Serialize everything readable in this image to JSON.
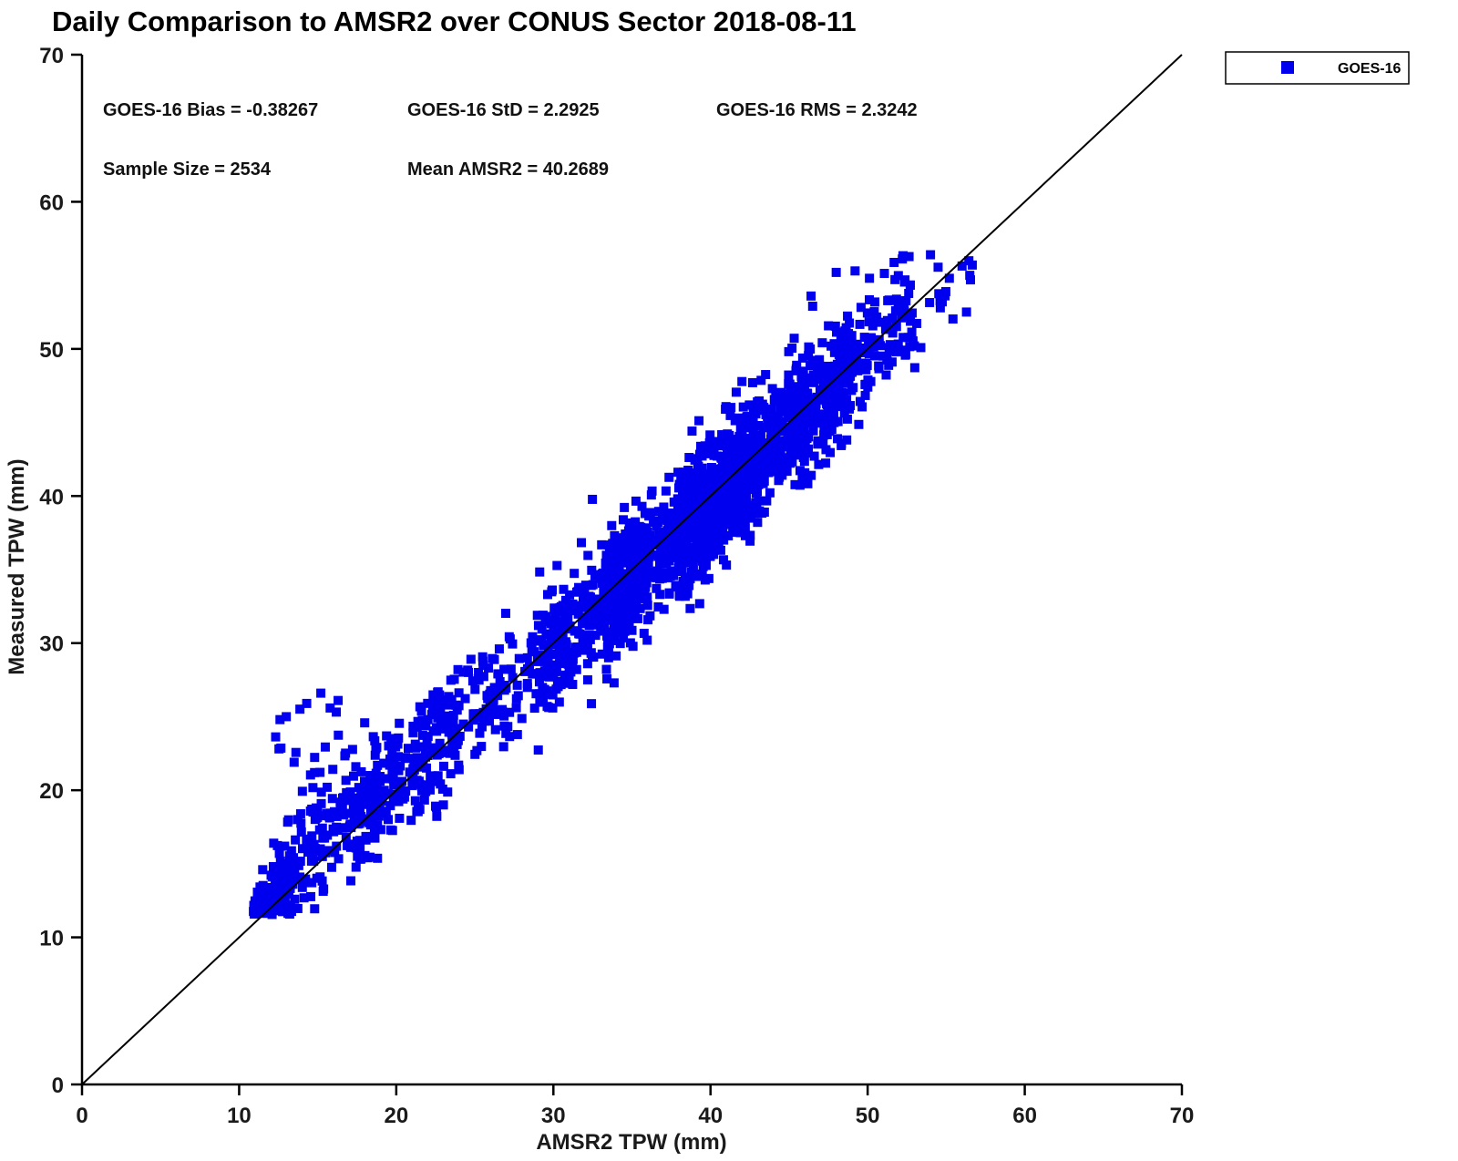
{
  "chart_data": {
    "type": "scatter",
    "title": "Daily Comparison to AMSR2 over CONUS Sector 2018-08-11",
    "xlabel": "AMSR2 TPW (mm)",
    "ylabel": "Measured TPW (mm)",
    "xlim": [
      0,
      70
    ],
    "ylim": [
      0,
      70
    ],
    "xticks": [
      0,
      10,
      20,
      30,
      40,
      50,
      60,
      70
    ],
    "yticks": [
      0,
      10,
      20,
      30,
      40,
      50,
      60,
      70
    ],
    "grid": false,
    "reference_line": {
      "type": "identity",
      "from": [
        0,
        0
      ],
      "to": [
        70,
        70
      ],
      "color": "#000000"
    },
    "legend": {
      "position": "top-right-outside",
      "entries": [
        {
          "label": "GOES-16",
          "marker": "square",
          "color": "#0000ee"
        }
      ]
    },
    "annotations": [
      {
        "text": "GOES-16 Bias = -0.38267"
      },
      {
        "text": "GOES-16 StD = 2.2925"
      },
      {
        "text": "GOES-16 RMS = 2.3242"
      },
      {
        "text": "Sample Size = 2534"
      },
      {
        "text": "Mean AMSR2 = 40.2689"
      }
    ],
    "stats": {
      "bias": -0.38267,
      "std": 2.2925,
      "rms": 2.3242,
      "sample_size": 2534,
      "mean_amsr2": 40.2689
    },
    "series": [
      {
        "name": "GOES-16",
        "marker": "square",
        "color": "#0000ee",
        "n_points": 2534,
        "seed": 20180811,
        "clusters": [
          {
            "n": 150,
            "x_min": 10.9,
            "x_max": 13.5,
            "bias": 0.8,
            "sigma": 0.7
          },
          {
            "n": 140,
            "x_min": 12.0,
            "x_max": 19.0,
            "bias": 0.6,
            "sigma": 1.6
          },
          {
            "n": 50,
            "x_min": 13.0,
            "x_max": 20.0,
            "bias": 3.0,
            "sigma": 1.8
          },
          {
            "n": 170,
            "x_min": 17.0,
            "x_max": 24.0,
            "bias": 0.3,
            "sigma": 1.7
          },
          {
            "n": 90,
            "x_min": 21.0,
            "x_max": 27.0,
            "bias": 1.2,
            "sigma": 1.8
          },
          {
            "n": 110,
            "x_min": 25.0,
            "x_max": 31.0,
            "bias": -0.2,
            "sigma": 1.7
          },
          {
            "n": 280,
            "x_min": 29.0,
            "x_max": 36.0,
            "bias": -0.5,
            "sigma": 2.0
          },
          {
            "n": 640,
            "x_min": 33.0,
            "x_max": 43.0,
            "bias": -0.5,
            "sigma": 2.2
          },
          {
            "n": 648,
            "x_min": 38.0,
            "x_max": 49.0,
            "bias": -0.4,
            "sigma": 2.2
          },
          {
            "n": 200,
            "x_min": 45.0,
            "x_max": 53.0,
            "bias": -0.3,
            "sigma": 1.9
          },
          {
            "n": 26,
            "x_min": 50.0,
            "x_max": 57.0,
            "bias": -1.0,
            "sigma": 1.6
          },
          {
            "n": 12,
            "x_min": 12.0,
            "x_max": 17.0,
            "y_min": 19.5,
            "y_max": 26.5
          }
        ],
        "extra_points": [
          [
            12.6,
            24.8
          ],
          [
            14.3,
            25.9
          ],
          [
            15.2,
            26.6
          ],
          [
            16.3,
            26.1
          ],
          [
            13.0,
            25.0
          ],
          [
            14.8,
            21.2
          ],
          [
            13.5,
            21.9
          ],
          [
            12.2,
            16.4
          ],
          [
            11.5,
            14.6
          ],
          [
            21.5,
            18.7
          ],
          [
            23.0,
            19.0
          ],
          [
            24.0,
            21.4
          ],
          [
            48.0,
            55.2
          ],
          [
            49.2,
            55.3
          ],
          [
            54.0,
            56.4
          ],
          [
            56.5,
            55.0
          ],
          [
            55.2,
            54.8
          ],
          [
            46.5,
            52.9
          ]
        ]
      }
    ]
  }
}
